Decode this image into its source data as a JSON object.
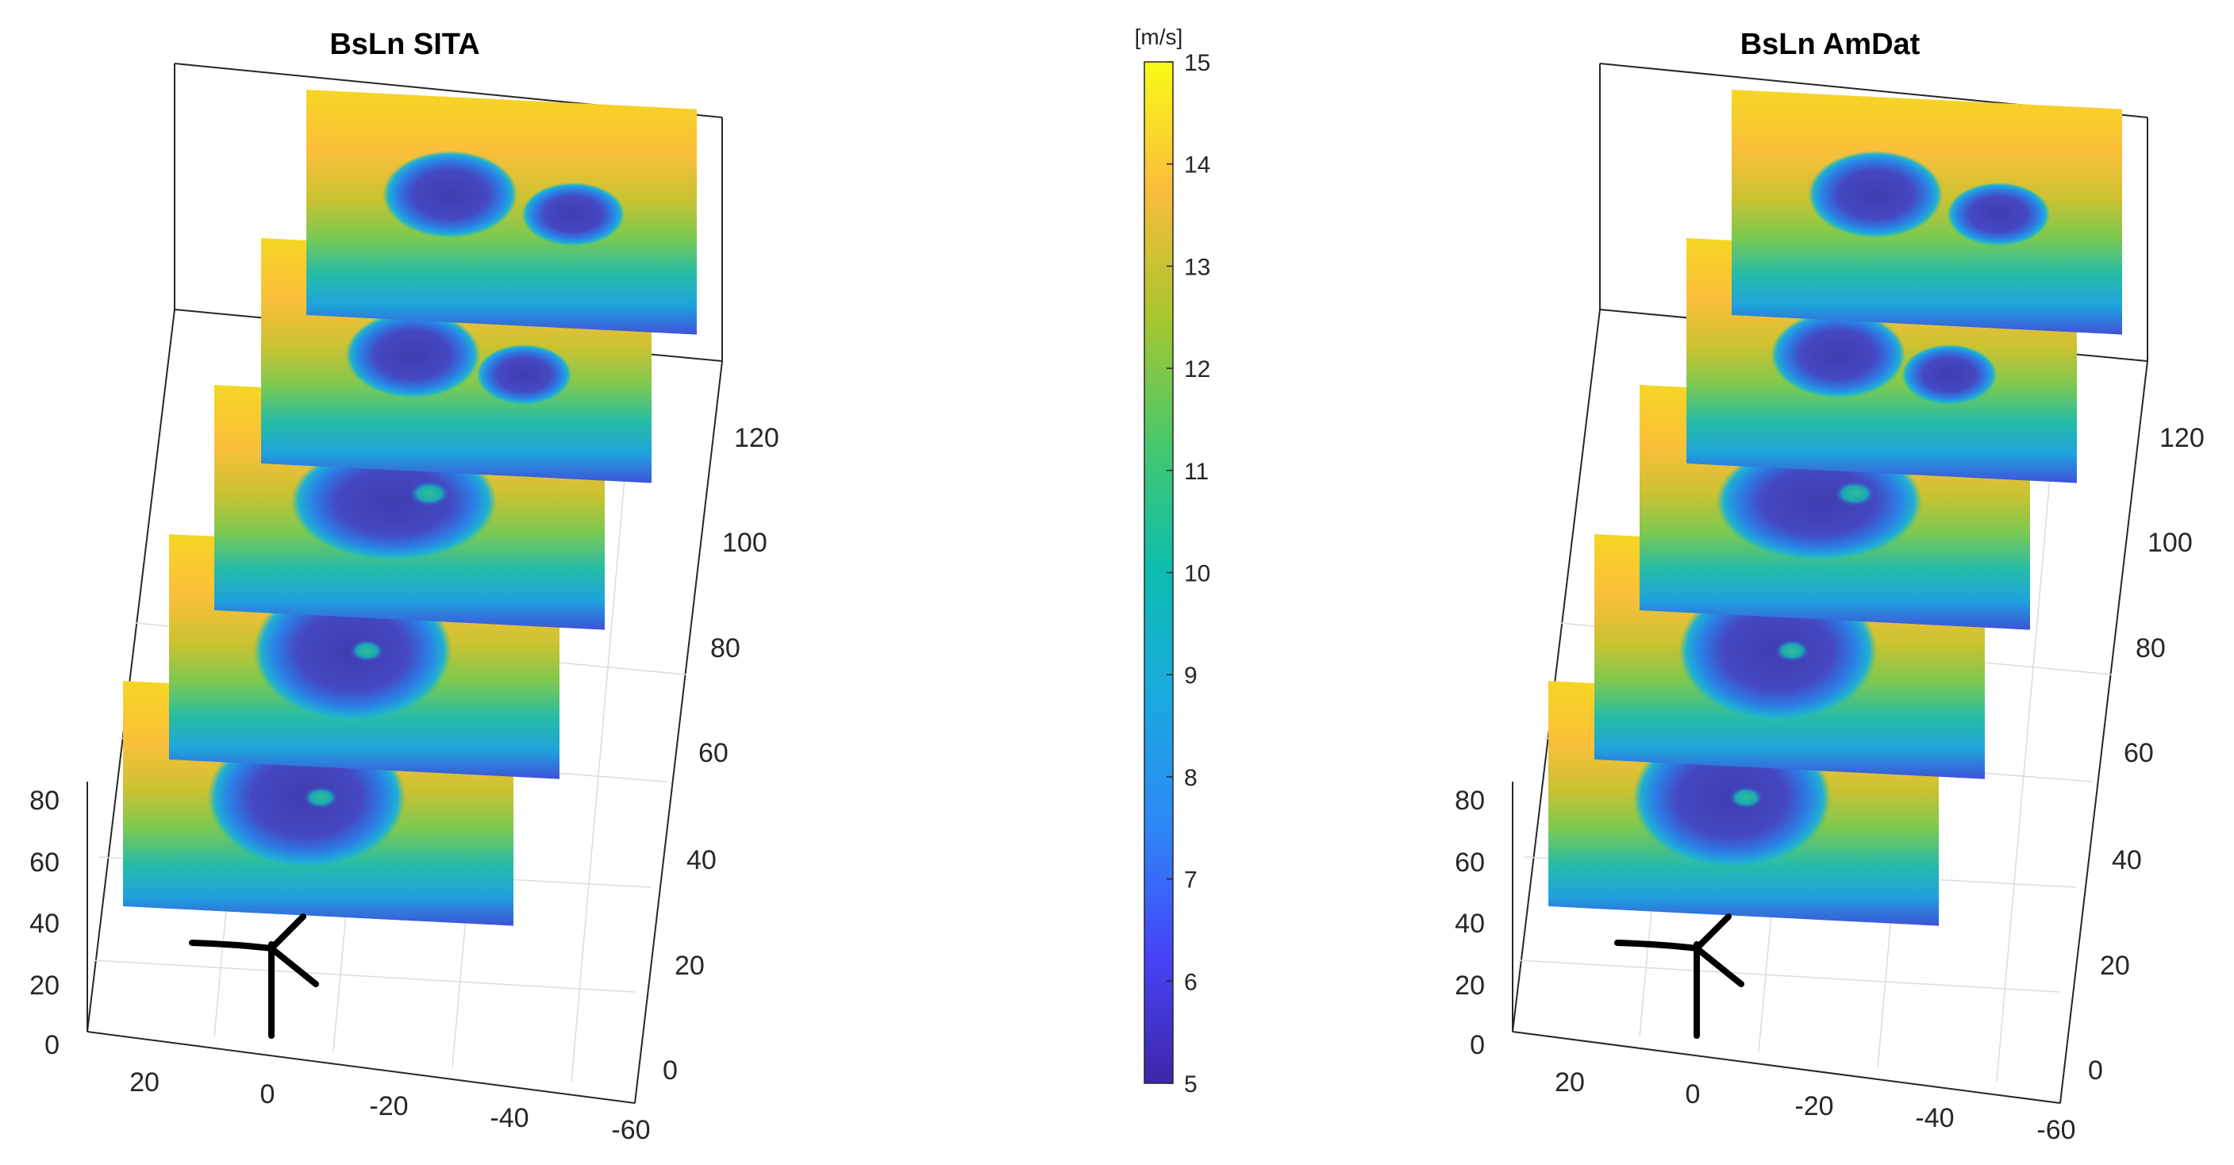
{
  "colormap": {
    "name": "parula",
    "stops": [
      "#3e26a8",
      "#4743f8",
      "#2e87f7",
      "#1aa9e0",
      "#0cbcb0",
      "#45c86d",
      "#a9c62d",
      "#fbbc3d",
      "#f9fb15"
    ]
  },
  "chart_data": [
    {
      "type": "slice-planes-3d",
      "title": "BsLn SITA",
      "x_ticks": [
        "20",
        "0",
        "-20",
        "-40",
        "-60"
      ],
      "y_ticks": [
        "0",
        "20",
        "40",
        "60",
        "80",
        "100",
        "120"
      ],
      "z_ticks": [
        "0",
        "20",
        "40",
        "60",
        "80"
      ],
      "xlim": [
        30,
        -60
      ],
      "ylim": [
        0,
        130
      ],
      "zlim": [
        0,
        90
      ],
      "slices": [
        {
          "min_speed": 6.0,
          "center_speed": 10.5,
          "wake_shape": "single"
        },
        {
          "min_speed": 6.2,
          "center_speed": 10.0,
          "wake_shape": "single"
        },
        {
          "min_speed": 6.5,
          "center_speed": 9.5,
          "wake_shape": "kidney"
        },
        {
          "min_speed": 7.0,
          "center_speed": 9.0,
          "wake_shape": "curved"
        },
        {
          "min_speed": 7.5,
          "center_speed": 9.0,
          "wake_shape": "split"
        }
      ],
      "grid": true
    },
    {
      "type": "slice-planes-3d",
      "title": "BsLn AmDat",
      "x_ticks": [
        "20",
        "0",
        "-20",
        "-40",
        "-60"
      ],
      "y_ticks": [
        "0",
        "20",
        "40",
        "60",
        "80",
        "100",
        "120"
      ],
      "z_ticks": [
        "0",
        "20",
        "40",
        "60",
        "80"
      ],
      "xlim": [
        30,
        -60
      ],
      "ylim": [
        0,
        130
      ],
      "zlim": [
        0,
        90
      ],
      "slices": [
        {
          "min_speed": 6.0,
          "center_speed": 10.5,
          "wake_shape": "single"
        },
        {
          "min_speed": 6.2,
          "center_speed": 10.0,
          "wake_shape": "single"
        },
        {
          "min_speed": 6.5,
          "center_speed": 9.5,
          "wake_shape": "kidney"
        },
        {
          "min_speed": 7.0,
          "center_speed": 9.0,
          "wake_shape": "curved"
        },
        {
          "min_speed": 7.5,
          "center_speed": 9.0,
          "wake_shape": "split"
        }
      ],
      "grid": true
    }
  ],
  "colorbar": {
    "unit": "[m/s]",
    "min": 5,
    "max": 15,
    "ticks": [
      "5",
      "6",
      "7",
      "8",
      "9",
      "10",
      "11",
      "12",
      "13",
      "14",
      "15"
    ]
  }
}
